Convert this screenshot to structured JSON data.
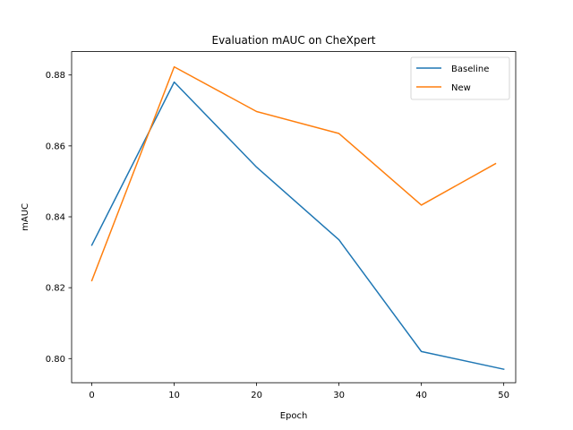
{
  "chart_data": {
    "type": "line",
    "title": "Evaluation mAUC on CheXpert",
    "xlabel": "Epoch",
    "ylabel": "mAUC",
    "xlim": [
      -2.45,
      51.45
    ],
    "ylim": [
      0.7932,
      0.8866
    ],
    "x_ticks": [
      0,
      10,
      20,
      30,
      40,
      50
    ],
    "x_tick_labels": [
      "0",
      "10",
      "20",
      "30",
      "40",
      "50"
    ],
    "y_ticks": [
      0.8,
      0.82,
      0.84,
      0.86,
      0.88
    ],
    "y_tick_labels": [
      "0.80",
      "0.82",
      "0.84",
      "0.86",
      "0.88"
    ],
    "grid": false,
    "legend_position": "top-right",
    "series": [
      {
        "name": "Baseline",
        "color": "#1f77b4",
        "x": [
          0,
          10,
          20,
          30,
          40,
          50
        ],
        "y": [
          0.832,
          0.878,
          0.854,
          0.8335,
          0.802,
          0.797
        ]
      },
      {
        "name": "New",
        "color": "#ff7f0e",
        "x": [
          0,
          10,
          20,
          30,
          40,
          49
        ],
        "y": [
          0.822,
          0.8823,
          0.8697,
          0.8635,
          0.8433,
          0.855
        ]
      }
    ]
  }
}
